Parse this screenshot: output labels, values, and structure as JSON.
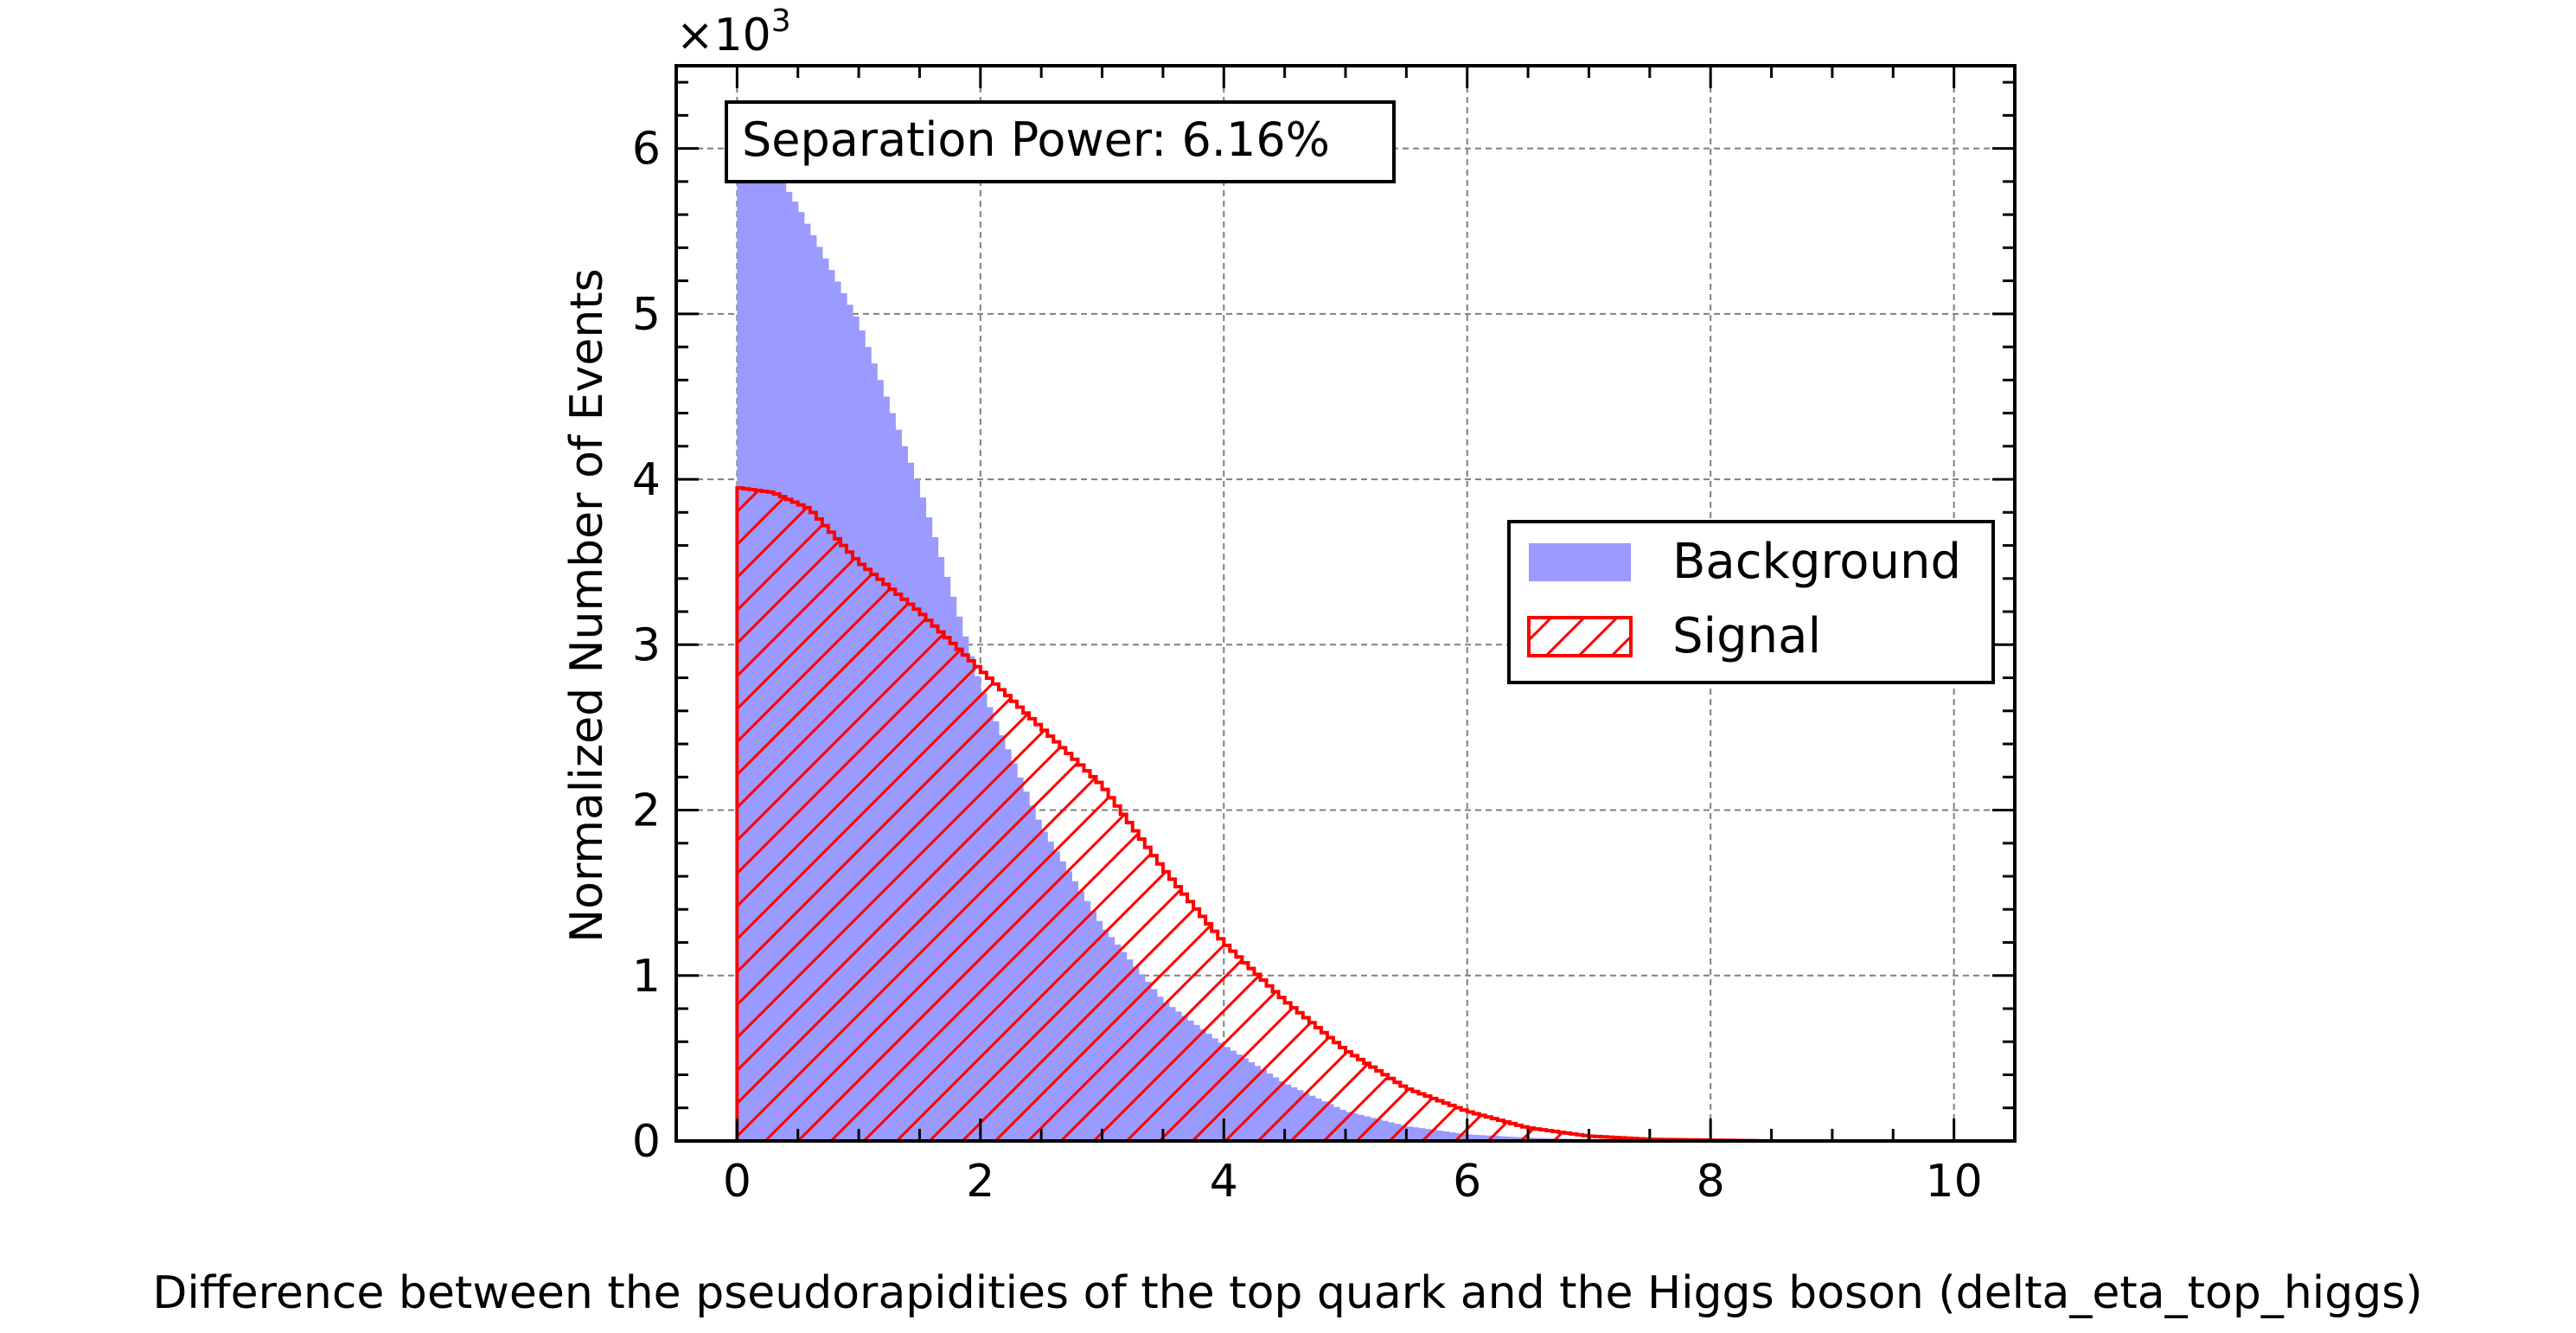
{
  "chart_data": {
    "type": "bar",
    "xlabel": "Difference between the pseudorapidities of the top quark and the Higgs boson (delta_eta_top_higgs)",
    "ylabel": "Normalized Number of Events",
    "scale_label": "×10",
    "scale_exponent": "3",
    "xlim": [
      -0.5,
      10.5
    ],
    "ylim": [
      0,
      6.5
    ],
    "x_ticks": [
      0,
      2,
      4,
      6,
      8,
      10
    ],
    "y_ticks": [
      0,
      1,
      2,
      3,
      4,
      5,
      6
    ],
    "grid": true,
    "legend_position": "center-right",
    "annotation": "Separation Power: 6.16%",
    "bins": {
      "start": 0,
      "width": 0.05,
      "count": 200,
      "units": "thousands of events"
    },
    "series": [
      {
        "name": "Background",
        "style": "filled",
        "color": "#9a9aff",
        "profile": [
          [
            0,
            6.1
          ],
          [
            0.2,
            6.0
          ],
          [
            0.5,
            5.65
          ],
          [
            1.0,
            4.95
          ],
          [
            1.5,
            3.95
          ],
          [
            2.0,
            2.75
          ],
          [
            2.5,
            1.9
          ],
          [
            3.0,
            1.3
          ],
          [
            3.5,
            0.85
          ],
          [
            4.0,
            0.58
          ],
          [
            4.5,
            0.35
          ],
          [
            5.0,
            0.18
          ],
          [
            5.5,
            0.09
          ],
          [
            6.0,
            0.04
          ],
          [
            6.5,
            0.02
          ],
          [
            7.0,
            0.01
          ],
          [
            8.0,
            0.0
          ],
          [
            10.0,
            0.0
          ]
        ]
      },
      {
        "name": "Signal",
        "style": "hatched",
        "color": "#ff0000",
        "profile": [
          [
            0,
            3.95
          ],
          [
            0.3,
            3.92
          ],
          [
            0.6,
            3.82
          ],
          [
            1.0,
            3.5
          ],
          [
            1.5,
            3.2
          ],
          [
            2.0,
            2.85
          ],
          [
            2.5,
            2.5
          ],
          [
            3.0,
            2.15
          ],
          [
            3.5,
            1.65
          ],
          [
            4.0,
            1.2
          ],
          [
            4.5,
            0.85
          ],
          [
            5.0,
            0.55
          ],
          [
            5.5,
            0.32
          ],
          [
            6.0,
            0.18
          ],
          [
            6.5,
            0.08
          ],
          [
            7.0,
            0.03
          ],
          [
            7.5,
            0.01
          ],
          [
            8.0,
            0.005
          ],
          [
            8.5,
            0.0
          ],
          [
            10.0,
            0.0
          ]
        ]
      }
    ]
  }
}
